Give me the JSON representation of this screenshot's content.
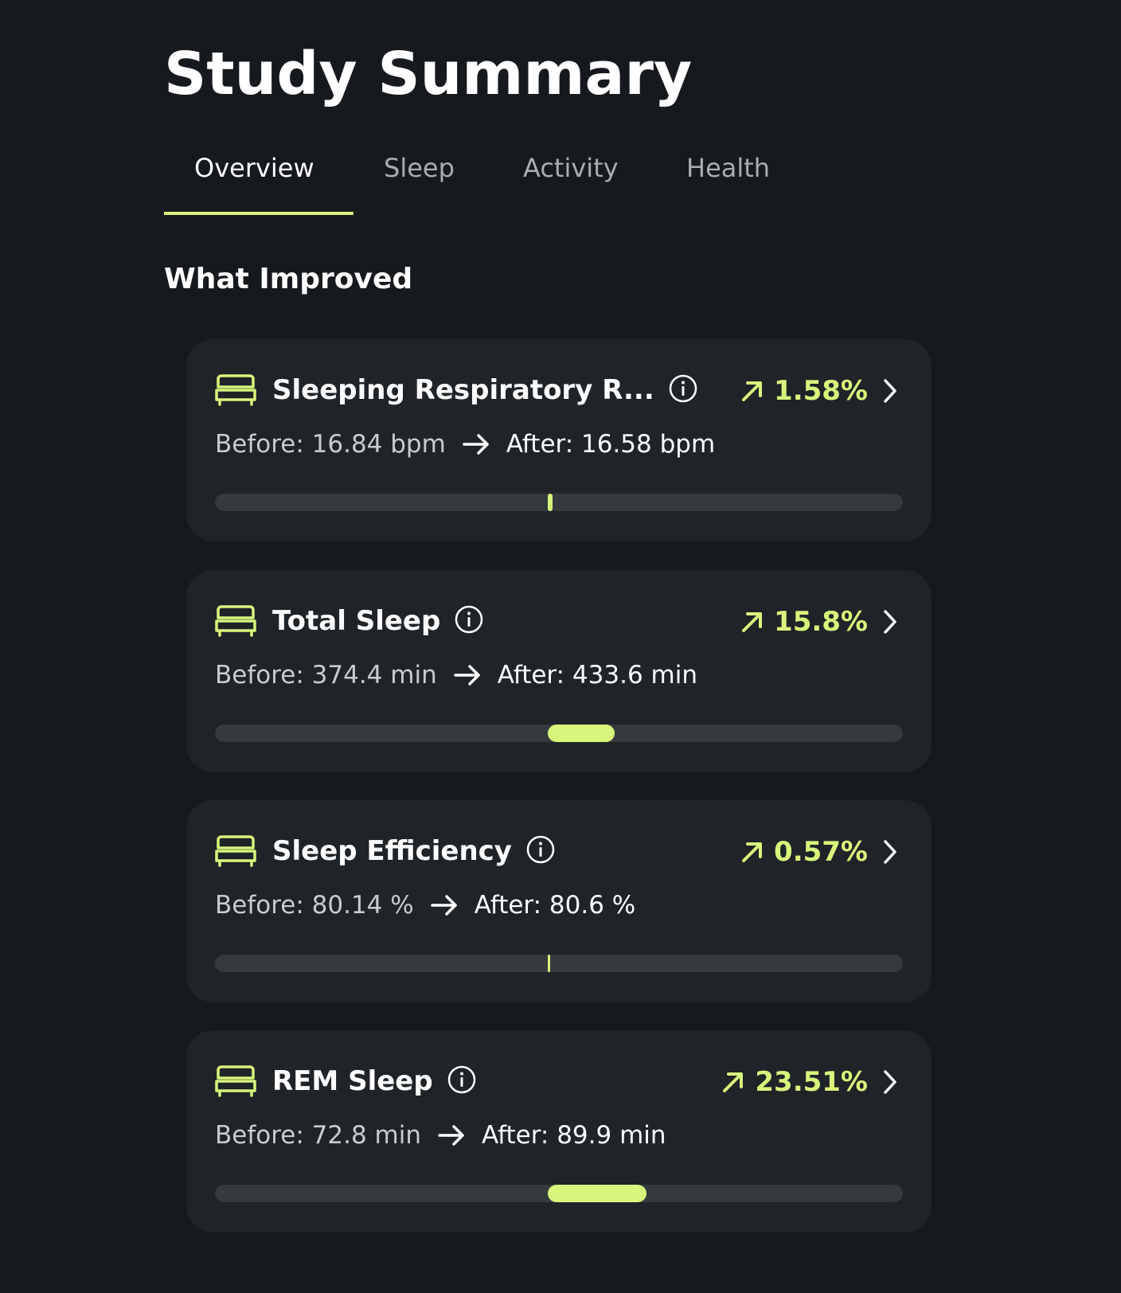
{
  "page": {
    "title": "Study Summary"
  },
  "tabs": [
    {
      "label": "Overview",
      "active": true
    },
    {
      "label": "Sleep",
      "active": false
    },
    {
      "label": "Activity",
      "active": false
    },
    {
      "label": "Health",
      "active": false
    }
  ],
  "section": {
    "title": "What Improved"
  },
  "colors": {
    "accent": "#d8f57c",
    "card": "#1f2428",
    "background": "#16191d",
    "track": "#353a3e"
  },
  "metrics": [
    {
      "name": "Sleeping Respiratory R...",
      "icon": "bed-icon",
      "change": "1.58%",
      "before": "Before: 16.84 bpm",
      "after": "After: 16.58 bpm",
      "bar_change_fraction": 0.0158
    },
    {
      "name": "Total Sleep",
      "icon": "bed-icon",
      "change": "15.8%",
      "before": "Before: 374.4 min",
      "after": "After: 433.6 min",
      "bar_change_fraction": 0.158
    },
    {
      "name": "Sleep Efficiency",
      "icon": "bed-icon",
      "change": "0.57%",
      "before": "Before: 80.14 %",
      "after": "After: 80.6 %",
      "bar_change_fraction": 0.0057
    },
    {
      "name": "REM Sleep",
      "icon": "bed-icon",
      "change": "23.51%",
      "before": "Before: 72.8 min",
      "after": "After: 89.9 min",
      "bar_change_fraction": 0.2351
    }
  ]
}
